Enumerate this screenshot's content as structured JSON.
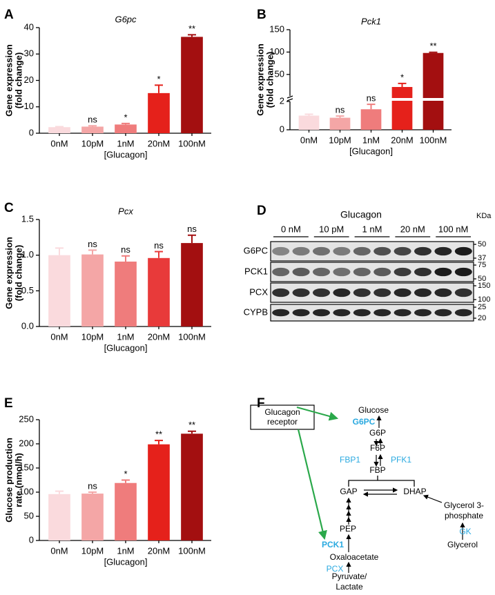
{
  "chart_data": [
    {
      "type": "bar",
      "panel": "A",
      "title": "G6pc",
      "ylabel": [
        "Gene expression",
        "(fold change)"
      ],
      "xlabel": "[Glucagon]",
      "categories": [
        "0nM",
        "10pM",
        "1nM",
        "20nM",
        "100nM"
      ],
      "values": [
        2.3,
        2.5,
        3.3,
        15.2,
        36.5
      ],
      "errors": [
        0.2,
        0.3,
        0.4,
        3.0,
        0.8
      ],
      "annotations": [
        null,
        "ns",
        "*",
        "*",
        "**"
      ],
      "colors": [
        "#fadadd",
        "#f4a6a6",
        "#ef7c7c",
        "#e5211b",
        "#a30f10"
      ],
      "ylim": [
        0,
        40
      ],
      "yticks": [
        0,
        10,
        20,
        30,
        40
      ]
    },
    {
      "type": "bar",
      "panel": "B",
      "title": "Pck1",
      "ylabel": [
        "Gene expression",
        "(fold change)"
      ],
      "xlabel": "[Glucagon]",
      "categories": [
        "0nM",
        "10pM",
        "1nM",
        "20nM",
        "100nM"
      ],
      "values": [
        1.0,
        0.85,
        1.45,
        22,
        98
      ],
      "errors": [
        0.1,
        0.12,
        0.35,
        8,
        1.5
      ],
      "annotations": [
        null,
        "ns",
        "ns",
        "*",
        "**"
      ],
      "colors": [
        "#fadadd",
        "#f4a6a6",
        "#ef7c7c",
        "#e5211b",
        "#a30f10"
      ],
      "ylim": [
        0,
        150
      ],
      "ybreak": 2,
      "yticks": [
        0,
        2,
        50,
        100,
        150
      ]
    },
    {
      "type": "bar",
      "panel": "C",
      "title": "Pcx",
      "ylabel": [
        "Gene expression",
        "(fold change)"
      ],
      "xlabel": "[Glucagon]",
      "categories": [
        "0nM",
        "10pM",
        "1nM",
        "20nM",
        "100nM"
      ],
      "values": [
        1.0,
        1.01,
        0.91,
        0.96,
        1.17
      ],
      "errors": [
        0.1,
        0.06,
        0.08,
        0.09,
        0.11
      ],
      "annotations": [
        null,
        "ns",
        "ns",
        "ns",
        "ns"
      ],
      "colors": [
        "#fadadd",
        "#f4a6a6",
        "#ef7c7c",
        "#e83a3a",
        "#a30f10"
      ],
      "ylim": [
        0,
        1.5
      ],
      "yticks": [
        {
          "value": 0,
          "label": "0.0"
        },
        0.5,
        {
          "value": 1,
          "label": "1.0"
        },
        1.5
      ]
    },
    {
      "type": "bar",
      "panel": "E",
      "ylabel": [
        "Glucose production",
        "rate (nmol/h)"
      ],
      "xlabel": "[Glucagon]",
      "categories": [
        "0nM",
        "10pM",
        "1nM",
        "20nM",
        "100nM"
      ],
      "values": [
        96,
        97,
        119,
        199,
        221
      ],
      "errors": [
        6,
        3,
        6,
        8,
        5
      ],
      "annotations": [
        null,
        "ns",
        "*",
        "**",
        "**"
      ],
      "colors": [
        "#fadadd",
        "#f4a6a6",
        "#ef7c7c",
        "#e5211b",
        "#a30f10"
      ],
      "ylim": [
        0,
        250
      ],
      "yticks": [
        0,
        50,
        100,
        150,
        200,
        250
      ]
    }
  ],
  "blot": {
    "panel": "D",
    "title": "Glucagon",
    "unit": "KDa",
    "lanes": [
      "0 nM",
      "10 pM",
      "1 nM",
      "20 nM",
      "100 nM"
    ],
    "rows": [
      {
        "label": "G6PC",
        "markers": [
          50,
          37
        ]
      },
      {
        "label": "PCK1",
        "markers": [
          75,
          50
        ]
      },
      {
        "label": "PCX",
        "markers": [
          150,
          100
        ]
      },
      {
        "label": "CYPB",
        "markers": [
          25,
          20
        ]
      }
    ]
  },
  "pathway": {
    "panel": "F",
    "receptor": [
      "Glucagon",
      "receptor"
    ],
    "nodes": [
      "Glucose",
      "G6PC",
      "G6P",
      "F6P",
      "FBP1",
      "PFK1",
      "FBP",
      "GAP",
      "DHAP",
      "Glycerol 3-",
      "phosphate",
      "GK",
      "Glycerol",
      "PEP",
      "PCK1",
      "Oxaloacetate",
      "PCX",
      "Pyruvate/",
      "Lactate"
    ]
  }
}
